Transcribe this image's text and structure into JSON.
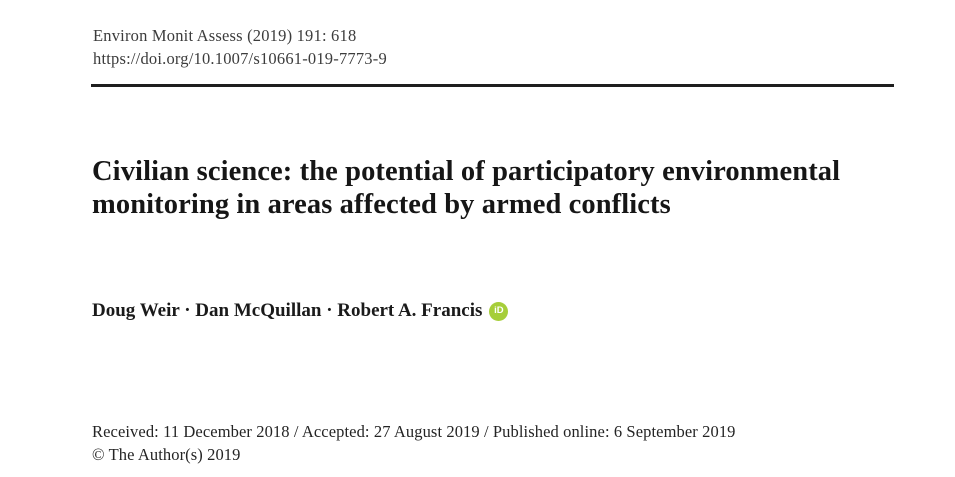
{
  "header": {
    "journal_line": "Environ Monit Assess (2019) 191: 618",
    "doi_line": "https://doi.org/10.1007/s10661-019-7773-9"
  },
  "article": {
    "title": "Civilian science: the potential of participatory environmental monitoring in areas affected by armed conflicts",
    "authors": "Doug Weir · Dan McQuillan · Robert A. Francis",
    "orcid_icon": {
      "label": "iD",
      "color": "#a6ce39"
    }
  },
  "meta": {
    "dates_line": "Received: 11 December 2018 / Accepted: 27 August 2019 / Published online: 6 September 2019",
    "copyright_line": "© The Author(s) 2019"
  }
}
